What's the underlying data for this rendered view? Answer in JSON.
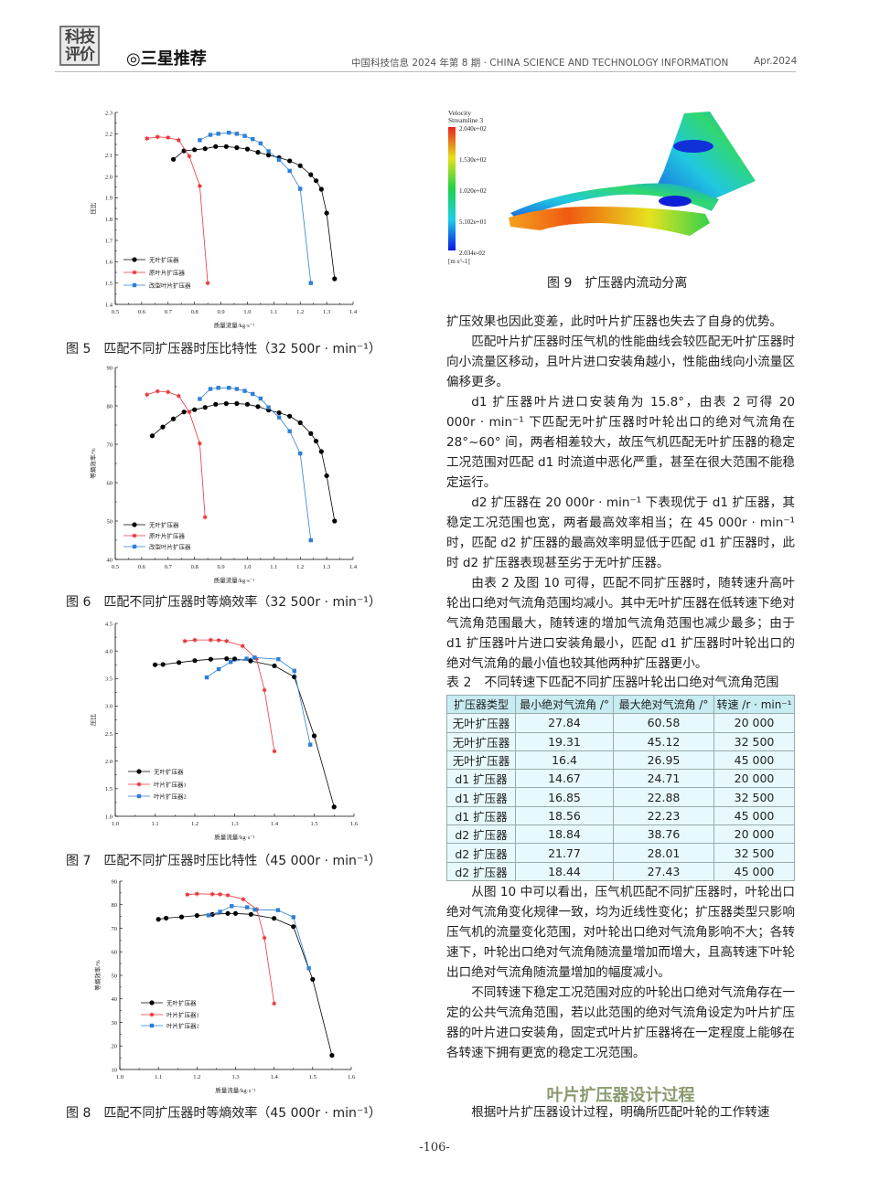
{
  "header": {
    "logo_text": "科技评价",
    "section": "◎三星推荐",
    "journal": "中国科技信息 2024 年第 8 期 · CHINA SCIENCE AND TECHNOLOGY INFORMATION",
    "date": "Apr.2024"
  },
  "captions": {
    "fig5": "图 5　匹配不同扩压器时压比特性（32 500r · min⁻¹）",
    "fig6": "图 6　匹配不同扩压器时等熵效率（32 500r · min⁻¹）",
    "fig7": "图 7　匹配不同扩压器时压比特性（45 000r · min⁻¹）",
    "fig8": "图 8　匹配不同扩压器时等熵效率（45 000r · min⁻¹）",
    "fig9": "图 9　扩压器内流动分离"
  },
  "fig9": {
    "title1": "Velocity",
    "title2": "Streamline 3",
    "levels": [
      "2.040e+02",
      "1.530e+02",
      "1.020e+02",
      "5.102e+01",
      "2.034e-02"
    ],
    "unit": "[m s^-1]"
  },
  "body": {
    "p1": "扩压效果也因此变差，此时叶片扩压器也失去了自身的优势。",
    "p2": "匹配叶片扩压器时压气机的性能曲线会较匹配无叶扩压器时向小流量区移动，且叶片进口安装角越小，性能曲线向小流量区偏移更多。",
    "p3": "d1 扩压器叶片进口安装角为 15.8°，由表 2 可得 20 000r · min⁻¹ 下匹配无叶扩压器时叶轮出口的绝对气流角在 28°~60° 间，两者相差较大，故压气机匹配无叶扩压器的稳定工况范围对匹配 d1 时流道中恶化严重，甚至在很大范围不能稳定运行。",
    "p4": "d2 扩压器在 20 000r · min⁻¹ 下表现优于 d1 扩压器，其稳定工况范围也宽，两者最高效率相当；在 45 000r · min⁻¹ 时，匹配 d2 扩压器的最高效率明显低于匹配 d1 扩压器时，此时 d2 扩压器表现甚至劣于无叶扩压器。",
    "p5": "由表 2 及图 10 可得，匹配不同扩压器时，随转速升高叶轮出口绝对气流角范围均减小。其中无叶扩压器在低转速下绝对气流角范围最大，随转速的增加气流角范围也减少最多；由于 d1 扩压器叶片进口安装角最小，匹配 d1 扩压器时叶轮出口的绝对气流角的最小值也较其他两种扩压器更小。",
    "p6": "从图 10 中可以看出，压气机匹配不同扩压器时，叶轮出口绝对气流角变化规律一致，均为近线性变化；扩压器类型只影响压气机的流量变化范围，对叶轮出口绝对气流角影响不大；各转速下，叶轮出口绝对气流角随流量增加而增大，且高转速下叶轮出口绝对气流角随流量增加的幅度减小。",
    "p7": "不同转速下稳定工况范围对应的叶轮出口绝对气流角存在一定的公共气流角范围，若以此范围的绝对气流角设定为叶片扩压器的叶片进口安装角，固定式叶片扩压器将在一定程度上能够在各转速下拥有更宽的稳定工况范围。",
    "heading": "叶片扩压器设计过程",
    "p8": "根据叶片扩压器设计过程，明确所匹配叶轮的工作转速"
  },
  "table": {
    "caption": "表 2　不同转速下匹配不同扩压器叶轮出口绝对气流角范围",
    "headers": [
      "扩压器类型",
      "最小绝对气流角 /°",
      "最大绝对气流角 /°",
      "转速 /r · min⁻¹"
    ],
    "rows": [
      [
        "无叶扩压器",
        "27.84",
        "60.58",
        "20 000"
      ],
      [
        "无叶扩压器",
        "19.31",
        "45.12",
        "32 500"
      ],
      [
        "无叶扩压器",
        "16.4",
        "26.95",
        "45 000"
      ],
      [
        "d1 扩压器",
        "14.67",
        "24.71",
        "20 000"
      ],
      [
        "d1 扩压器",
        "16.85",
        "22.88",
        "32 500"
      ],
      [
        "d1 扩压器",
        "18.56",
        "22.23",
        "45 000"
      ],
      [
        "d2 扩压器",
        "18.84",
        "38.76",
        "20 000"
      ],
      [
        "d2 扩压器",
        "21.77",
        "28.01",
        "32 500"
      ],
      [
        "d2 扩压器",
        "18.44",
        "27.43",
        "45 000"
      ]
    ]
  },
  "page_number": "-106-",
  "chart_data": [
    {
      "type": "line",
      "xlabel": "质量流量/kg·s⁻¹",
      "ylabel": "压比",
      "xlim": [
        0.5,
        1.4
      ],
      "ylim": [
        1.4,
        2.3
      ],
      "xticks": [
        0.5,
        0.6,
        0.7,
        0.8,
        0.9,
        1.0,
        1.1,
        1.2,
        1.3,
        1.4
      ],
      "yticks": [
        1.4,
        1.5,
        1.6,
        1.7,
        1.8,
        1.9,
        2.0,
        2.1,
        2.2,
        2.3
      ],
      "legend": "lower-left",
      "grid": false,
      "series": [
        {
          "name": "无叶扩压器",
          "color": "#000000",
          "marker": "circle",
          "x": [
            0.72,
            0.76,
            0.8,
            0.84,
            0.88,
            0.92,
            0.96,
            1.0,
            1.04,
            1.08,
            1.12,
            1.16,
            1.2,
            1.24,
            1.26,
            1.28,
            1.3,
            1.33
          ],
          "y": [
            2.08,
            2.12,
            2.125,
            2.13,
            2.14,
            2.14,
            2.135,
            2.128,
            2.113,
            2.1,
            2.088,
            2.073,
            2.05,
            2.008,
            1.98,
            1.94,
            1.828,
            1.52
          ]
        },
        {
          "name": "原叶片扩压器",
          "color": "#e8383d",
          "marker": "star",
          "x": [
            0.62,
            0.66,
            0.7,
            0.74,
            0.78,
            0.82,
            0.85
          ],
          "y": [
            2.178,
            2.185,
            2.182,
            2.17,
            2.095,
            1.955,
            1.5
          ]
        },
        {
          "name": "改型叶片扩压器",
          "color": "#2f7fd6",
          "marker": "square",
          "x": [
            0.82,
            0.86,
            0.89,
            0.93,
            0.96,
            0.99,
            1.02,
            1.05,
            1.08,
            1.12,
            1.16,
            1.2,
            1.24
          ],
          "y": [
            2.17,
            2.195,
            2.2,
            2.205,
            2.2,
            2.19,
            2.175,
            2.155,
            2.118,
            2.078,
            2.026,
            1.942,
            1.5
          ]
        }
      ]
    },
    {
      "type": "line",
      "xlabel": "质量流量/kg·s⁻¹",
      "ylabel": "等熵效率/%",
      "xlim": [
        0.5,
        1.4
      ],
      "ylim": [
        40,
        90
      ],
      "xticks": [
        0.5,
        0.6,
        0.7,
        0.8,
        0.9,
        1.0,
        1.1,
        1.2,
        1.3,
        1.4
      ],
      "yticks": [
        40,
        50,
        60,
        70,
        80,
        90
      ],
      "legend": "lower-left",
      "grid": false,
      "series": [
        {
          "name": "无叶扩压器",
          "color": "#000000",
          "marker": "circle",
          "x": [
            0.64,
            0.68,
            0.72,
            0.76,
            0.8,
            0.84,
            0.88,
            0.92,
            0.96,
            1.0,
            1.04,
            1.08,
            1.12,
            1.16,
            1.2,
            1.24,
            1.26,
            1.28,
            1.3,
            1.33
          ],
          "y": [
            72.2,
            74.5,
            76.6,
            78.4,
            79.0,
            79.6,
            80.4,
            80.6,
            80.6,
            80.4,
            79.8,
            78.9,
            78.2,
            77.3,
            75.6,
            72.8,
            70.8,
            68.1,
            61.8,
            50.0
          ]
        },
        {
          "name": "原叶片扩压器",
          "color": "#e8383d",
          "marker": "star",
          "x": [
            0.62,
            0.66,
            0.7,
            0.74,
            0.78,
            0.82,
            0.84
          ],
          "y": [
            82.9,
            83.8,
            83.6,
            82.6,
            78.4,
            70.2,
            51.0
          ]
        },
        {
          "name": "改型叶片扩压器",
          "color": "#2f7fd6",
          "marker": "square",
          "x": [
            0.82,
            0.86,
            0.89,
            0.93,
            0.96,
            0.99,
            1.02,
            1.05,
            1.08,
            1.12,
            1.16,
            1.2,
            1.24
          ],
          "y": [
            81.8,
            84.4,
            84.7,
            84.7,
            84.4,
            83.9,
            83.1,
            81.9,
            79.6,
            77.0,
            73.4,
            67.6,
            45.0
          ]
        }
      ]
    },
    {
      "type": "line",
      "xlabel": "质量流量/kg·s⁻¹",
      "ylabel": "压比",
      "xlim": [
        1.0,
        1.6
      ],
      "ylim": [
        1.0,
        4.5
      ],
      "xticks": [
        1.0,
        1.1,
        1.2,
        1.3,
        1.4,
        1.5,
        1.6
      ],
      "yticks": [
        1.0,
        1.5,
        2.0,
        2.5,
        3.0,
        3.5,
        4.0,
        4.5
      ],
      "legend": "lower-left",
      "grid": false,
      "series": [
        {
          "name": "无叶扩压器",
          "color": "#000000",
          "marker": "circle",
          "x": [
            1.1,
            1.12,
            1.16,
            1.2,
            1.24,
            1.28,
            1.3,
            1.34,
            1.4,
            1.45,
            1.5,
            1.55
          ],
          "y": [
            3.75,
            3.755,
            3.79,
            3.825,
            3.85,
            3.86,
            3.855,
            3.82,
            3.73,
            3.53,
            2.46,
            1.17
          ]
        },
        {
          "name": "叶片扩压器1",
          "color": "#e8383d",
          "marker": "star",
          "x": [
            1.175,
            1.2,
            1.24,
            1.26,
            1.28,
            1.32,
            1.355,
            1.375,
            1.4
          ],
          "y": [
            4.18,
            4.2,
            4.2,
            4.195,
            4.18,
            4.09,
            3.86,
            3.29,
            2.18
          ]
        },
        {
          "name": "叶片扩压器2",
          "color": "#2f7fd6",
          "marker": "square",
          "x": [
            1.23,
            1.26,
            1.29,
            1.33,
            1.35,
            1.41,
            1.45,
            1.49
          ],
          "y": [
            3.52,
            3.67,
            3.8,
            3.86,
            3.88,
            3.85,
            3.64,
            2.3
          ]
        }
      ]
    },
    {
      "type": "line",
      "xlabel": "质量流量/kg·s⁻¹",
      "ylabel": "等熵效率/%",
      "xlim": [
        1.0,
        1.6
      ],
      "ylim": [
        10,
        90
      ],
      "xticks": [
        1.0,
        1.1,
        1.2,
        1.3,
        1.4,
        1.5,
        1.6
      ],
      "yticks": [
        10,
        20,
        30,
        40,
        50,
        60,
        70,
        80,
        90
      ],
      "legend": "lower-left",
      "grid": false,
      "series": [
        {
          "name": "无叶扩压器",
          "color": "#000000",
          "marker": "circle",
          "x": [
            1.1,
            1.12,
            1.16,
            1.2,
            1.24,
            1.28,
            1.3,
            1.34,
            1.4,
            1.45,
            1.5,
            1.55
          ],
          "y": [
            73.8,
            74.3,
            74.8,
            75.4,
            75.9,
            76.3,
            76.3,
            75.9,
            74.2,
            70.7,
            48.3,
            16.0
          ]
        },
        {
          "name": "叶片扩压器1",
          "color": "#e8383d",
          "marker": "star",
          "x": [
            1.175,
            1.2,
            1.24,
            1.26,
            1.28,
            1.32,
            1.355,
            1.375,
            1.4
          ],
          "y": [
            84.3,
            84.6,
            84.5,
            84.4,
            84.0,
            82.3,
            78.0,
            65.9,
            38.0
          ]
        },
        {
          "name": "叶片扩压器2",
          "color": "#2f7fd6",
          "marker": "square",
          "x": [
            1.23,
            1.26,
            1.29,
            1.33,
            1.35,
            1.41,
            1.45,
            1.49
          ],
          "y": [
            75.5,
            77.0,
            79.4,
            78.9,
            77.9,
            77.7,
            74.7,
            53.0
          ]
        }
      ]
    }
  ]
}
